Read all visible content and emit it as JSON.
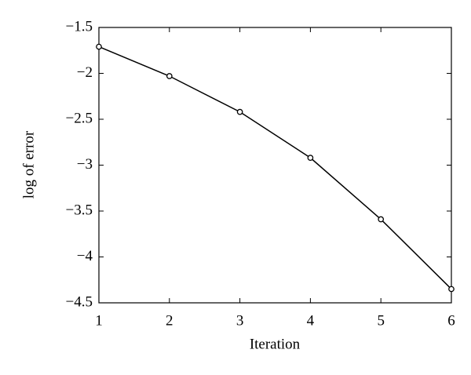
{
  "chart_data": {
    "type": "line",
    "x_label": "Iteration",
    "y_label": "log of error",
    "x": [
      1,
      2,
      3,
      4,
      5,
      6
    ],
    "series": [
      {
        "name": "log of error",
        "color": "#000000",
        "values": [
          -1.71,
          -2.03,
          -2.42,
          -2.92,
          -3.59,
          -4.35
        ]
      }
    ],
    "xlim": [
      1,
      6
    ],
    "xticks": [
      1,
      2,
      3,
      4,
      5,
      6
    ],
    "ylim": [
      -4.5,
      -1.5
    ],
    "yticks": [
      {
        "value": -4.5,
        "label": "−4.5"
      },
      {
        "value": -4,
        "label": "−4"
      },
      {
        "value": -3.5,
        "label": "−3.5"
      },
      {
        "value": -3,
        "label": "−3"
      },
      {
        "value": -2.5,
        "label": "−2.5"
      },
      {
        "value": -2,
        "label": "−2"
      },
      {
        "value": -1.5,
        "label": "−1.5"
      }
    ],
    "grid": false,
    "marker": "circle"
  }
}
